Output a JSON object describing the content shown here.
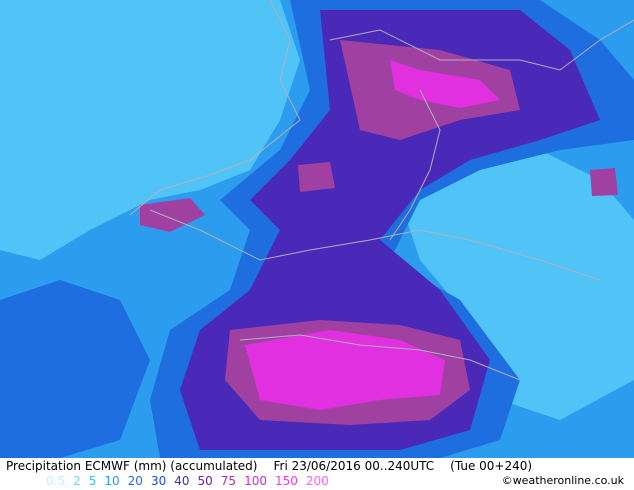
{
  "footer": {
    "title": "Precipitation ECMWF (mm) (accumulated)",
    "date": "Fri 23/06/2016 00..240UTC",
    "run": "(Tue 00+240)",
    "copyright": "©weatheronline.co.uk",
    "legend": [
      {
        "label": "0.5",
        "color": "#b8f4ff"
      },
      {
        "label": "2",
        "color": "#70d8ff"
      },
      {
        "label": "5",
        "color": "#40b8f8"
      },
      {
        "label": "10",
        "color": "#2898f0"
      },
      {
        "label": "20",
        "color": "#1e6ee0"
      },
      {
        "label": "30",
        "color": "#2848d0"
      },
      {
        "label": "40",
        "color": "#4a28b8"
      },
      {
        "label": "50",
        "color": "#7020a8"
      },
      {
        "label": "75",
        "color": "#b030b0"
      },
      {
        "label": "100",
        "color": "#d828d8"
      },
      {
        "label": "150",
        "color": "#f038f0"
      },
      {
        "label": "200",
        "color": "#ff60ff"
      }
    ]
  }
}
